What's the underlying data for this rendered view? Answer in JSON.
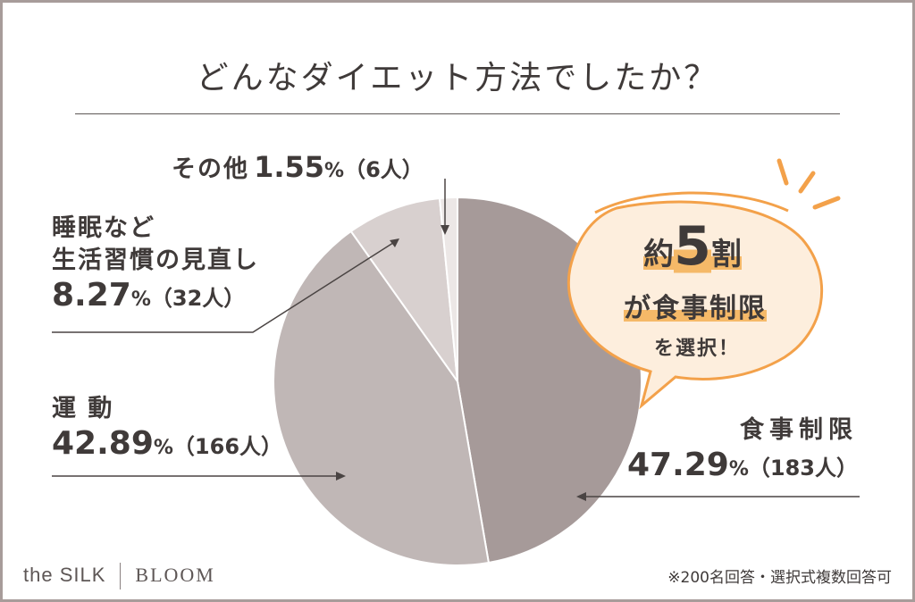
{
  "title": "どんなダイエット方法でしたか？",
  "chart_data": {
    "type": "pie",
    "title": "どんなダイエット方法でしたか？",
    "slices": [
      {
        "label": "食事制限",
        "percent": 47.29,
        "count": "183人",
        "color": "#a69a99"
      },
      {
        "label": "運動",
        "percent": 42.89,
        "count": "166人",
        "color": "#c0b7b6"
      },
      {
        "label": "睡眠など生活習慣の見直し",
        "percent": 8.27,
        "count": "32人",
        "color": "#d8d0cf"
      },
      {
        "label": "その他",
        "percent": 1.55,
        "count": "6人",
        "color": "#ece7e6"
      }
    ]
  },
  "labels": {
    "food": {
      "name": "食事制限",
      "pct": "47.29",
      "cnt": "（183人）"
    },
    "exercise": {
      "name": "運 動",
      "pct": "42.89",
      "cnt": "（166人）"
    },
    "lifestyle": {
      "name1": "睡眠など",
      "name2": "生活習慣の見直し",
      "pct": "8.27",
      "cnt": "（32人）"
    },
    "other": {
      "name": "その他",
      "pct": "1.55",
      "cnt": "（6人）"
    },
    "pct_sign": "%"
  },
  "callout": {
    "prefix": "約",
    "number": "5",
    "suffix": "割",
    "line2": "が食事制限",
    "line3": "を選択！"
  },
  "brand": {
    "left": "the SILK",
    "right": "BLOOM"
  },
  "footnote": "※200名回答・選択式複数回答可",
  "colors": {
    "accent": "#f3a14a",
    "accent_light": "#fdeedd",
    "text": "#3f3a39",
    "frame": "#a79c9a"
  }
}
